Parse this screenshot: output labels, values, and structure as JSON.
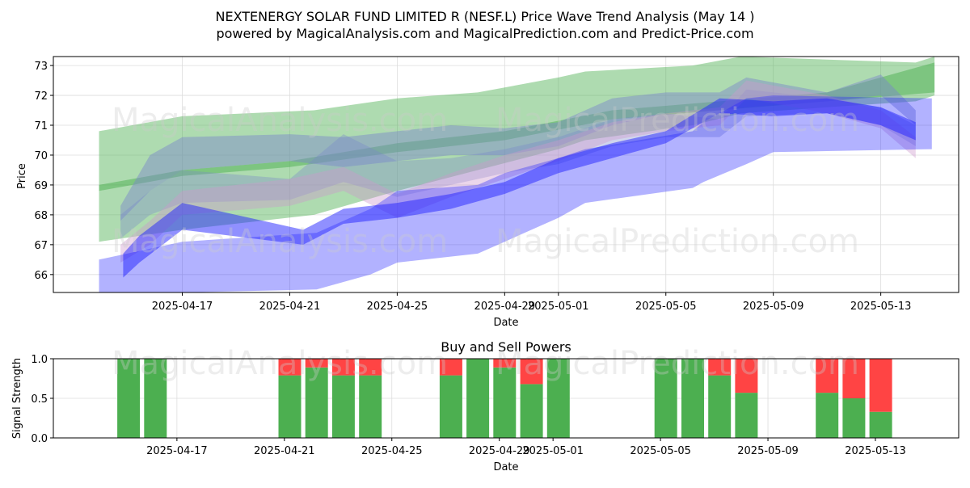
{
  "chart_data": [
    {
      "type": "area",
      "title_line1": "NEXTENERGY SOLAR FUND LIMITED R (NESF.L) Price Wave Trend Analysis (May 14 )",
      "title_line2": "powered by MagicalAnalysis.com and MagicalPrediction.com and Predict-Price.com",
      "xlabel": "Date",
      "ylabel": "Price",
      "ylim": [
        65.4,
        73.3
      ],
      "xlim_days": [
        -4.8,
        28.9
      ],
      "x_zero_date": "2025-04-17",
      "x_ticks": [
        {
          "day": 0,
          "label": "2025-04-17"
        },
        {
          "day": 4,
          "label": "2025-04-21"
        },
        {
          "day": 8,
          "label": "2025-04-25"
        },
        {
          "day": 12,
          "label": "2025-04-29"
        },
        {
          "day": 14,
          "label": "2025-05-01"
        },
        {
          "day": 18,
          "label": "2025-05-05"
        },
        {
          "day": 22,
          "label": "2025-05-09"
        },
        {
          "day": 26,
          "label": "2025-05-13"
        }
      ],
      "y_ticks": [
        66,
        67,
        68,
        69,
        70,
        71,
        72,
        73
      ],
      "watermarks": [
        "MagicalAnalysis.com",
        "MagicalPrediction.com"
      ],
      "bands": [
        {
          "color": "#4caf50",
          "opacity": 0.45,
          "x": [
            -3.1,
            0,
            4.9,
            8,
            11,
            14,
            15,
            19,
            20.8,
            24,
            27.3,
            28
          ],
          "upper": [
            70.8,
            71.3,
            71.5,
            71.9,
            72.1,
            72.6,
            72.8,
            73,
            73.3,
            73.2,
            73.1,
            73.3
          ],
          "lower": [
            67.1,
            67.5,
            68,
            68.8,
            69.5,
            70.2,
            70.5,
            71,
            71.4,
            71.6,
            71.8,
            72
          ]
        },
        {
          "color": "#4caf50",
          "opacity": 0.5,
          "x": [
            -3.1,
            0,
            4,
            8,
            12,
            16,
            20,
            24,
            28
          ],
          "upper": [
            69,
            69.5,
            69.8,
            70.4,
            70.8,
            71.5,
            71.8,
            72.1,
            73.1
          ],
          "lower": [
            68.8,
            69.3,
            69.6,
            70.1,
            70.5,
            71.2,
            71.5,
            71.8,
            72.1
          ]
        },
        {
          "color": "#7986cb",
          "opacity": 0.45,
          "x": [
            -2.3,
            -1.2,
            0,
            4,
            6,
            8,
            10,
            12,
            14,
            16,
            18,
            20,
            21,
            24,
            26,
            27.3
          ],
          "upper": [
            68.3,
            70,
            70.6,
            70.7,
            70.6,
            70.8,
            71,
            70.9,
            71.1,
            71.9,
            72.1,
            72.1,
            72.6,
            72.1,
            72.7,
            71.5
          ],
          "lower": [
            67.8,
            68.8,
            69.5,
            69.8,
            69.6,
            69.8,
            70,
            70,
            70.3,
            71,
            71.4,
            71.5,
            71.6,
            71.8,
            72,
            71
          ]
        },
        {
          "color": "#7986cb",
          "opacity": 0.35,
          "x": [
            -2.3,
            -1.2,
            0,
            4,
            6,
            8,
            10,
            12,
            14,
            16,
            18,
            20,
            21,
            24,
            26,
            27.3
          ],
          "upper": [
            68,
            68.8,
            69.5,
            69.2,
            70.7,
            69.8,
            69.9,
            70.2,
            70.6,
            71.2,
            71.4,
            71.2,
            72.2,
            71.9,
            71.6,
            71
          ],
          "lower": [
            67.2,
            68,
            68.4,
            68.5,
            69.1,
            68.6,
            69,
            69.4,
            69.7,
            70.3,
            70.6,
            70.6,
            71.3,
            71.4,
            71,
            70.3
          ]
        },
        {
          "color": "#cc99cc",
          "opacity": 0.4,
          "x": [
            -2.3,
            -1.2,
            0,
            4,
            6,
            8,
            10,
            12,
            14,
            16,
            18,
            20,
            21,
            24,
            26,
            27.3
          ],
          "upper": [
            67,
            67.8,
            68.8,
            69.2,
            69.6,
            68.7,
            69.4,
            70,
            70.5,
            71.1,
            71.4,
            71.6,
            72.5,
            72,
            71.5,
            70.6
          ],
          "lower": [
            66.4,
            67,
            68,
            68.3,
            68.8,
            67.9,
            68.6,
            69.2,
            69.8,
            70.5,
            70.8,
            71,
            71.9,
            71.4,
            70.9,
            69.9
          ]
        },
        {
          "color": "#2222ff",
          "opacity": 0.35,
          "x": [
            -3.1,
            0,
            5,
            7,
            8,
            11,
            12,
            14,
            15,
            19,
            19.4,
            21,
            22,
            27.9
          ],
          "upper": [
            66.5,
            67.1,
            67.4,
            68.2,
            68.8,
            69,
            69.4,
            69.9,
            70.2,
            70.8,
            71.1,
            71.9,
            72,
            71.9
          ],
          "lower": [
            65.2,
            65.4,
            65.5,
            66,
            66.4,
            66.7,
            67.1,
            67.9,
            68.4,
            68.9,
            69.1,
            69.7,
            70.1,
            70.2
          ]
        },
        {
          "color": "#2222ff",
          "opacity": 0.5,
          "x": [
            -2.2,
            -1.6,
            0,
            4.5,
            6,
            8,
            10,
            12,
            14,
            16,
            18,
            20,
            22,
            24,
            26,
            27.3
          ],
          "upper": [
            66.7,
            67.3,
            68.4,
            67.5,
            68.2,
            68.4,
            68.7,
            69.1,
            69.9,
            70.4,
            70.8,
            71.9,
            71.8,
            71.9,
            71.6,
            71.1
          ],
          "lower": [
            65.9,
            66.4,
            67.5,
            67,
            67.7,
            67.9,
            68.2,
            68.7,
            69.4,
            69.9,
            70.4,
            71.4,
            71.3,
            71.4,
            71,
            70.5
          ]
        }
      ]
    },
    {
      "type": "bar",
      "title": "Buy and Sell Powers",
      "xlabel": "Date",
      "ylabel": "Signal Strength",
      "ylim": [
        0,
        1
      ],
      "xlim_days": [
        -4.8,
        28.9
      ],
      "x_ticks": [
        {
          "day": 0,
          "label": "2025-04-17"
        },
        {
          "day": 4,
          "label": "2025-04-21"
        },
        {
          "day": 8,
          "label": "2025-04-25"
        },
        {
          "day": 12,
          "label": "2025-04-29"
        },
        {
          "day": 14,
          "label": "2025-05-01"
        },
        {
          "day": 18,
          "label": "2025-05-05"
        },
        {
          "day": 22,
          "label": "2025-05-09"
        },
        {
          "day": 26,
          "label": "2025-05-13"
        }
      ],
      "y_ticks": [
        "0.0",
        "0.5",
        "1.0"
      ],
      "buy_color": "#4caf50",
      "sell_color": "#ff4444",
      "series": [
        {
          "name": "Buy",
          "days": [
            -2,
            -1,
            4,
            5,
            6,
            7,
            10,
            11,
            12,
            13,
            14,
            18,
            19,
            20,
            21,
            24,
            25,
            26
          ],
          "values": [
            1,
            1,
            0.79,
            0.89,
            0.79,
            0.79,
            0.79,
            1,
            0.89,
            0.68,
            1,
            1,
            1,
            0.79,
            0.57,
            0.57,
            0.5,
            0.33
          ]
        },
        {
          "name": "Sell",
          "days": [
            -2,
            -1,
            4,
            5,
            6,
            7,
            10,
            11,
            12,
            13,
            14,
            18,
            19,
            20,
            21,
            24,
            25,
            26
          ],
          "values": [
            0,
            0,
            0.21,
            0.11,
            0.21,
            0.21,
            0.21,
            0,
            0.11,
            0.32,
            0,
            0,
            0,
            0.21,
            0.43,
            0.43,
            0.5,
            0.67
          ]
        }
      ]
    }
  ]
}
